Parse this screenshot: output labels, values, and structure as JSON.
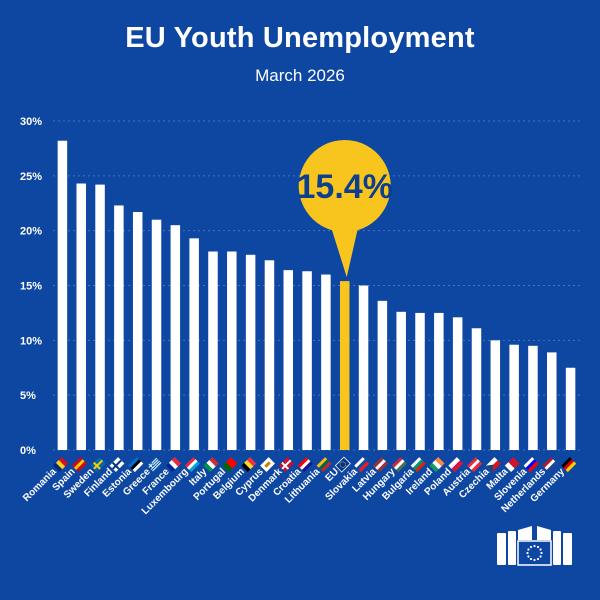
{
  "title": "EU Youth Unemployment",
  "subtitle": "March 2026",
  "highlight_label": "15.4%",
  "colors": {
    "background": "#0e47a1",
    "bar": "#ffffff",
    "highlight": "#f7c51d",
    "grid": "#4a72bf",
    "callout_text": "#0e3f8f"
  },
  "chart_data": {
    "type": "bar",
    "ylim": [
      0,
      30
    ],
    "yticks": [
      0,
      5,
      10,
      15,
      20,
      25,
      30
    ],
    "ytick_labels": [
      "0%",
      "5%",
      "10%",
      "15%",
      "20%",
      "25%",
      "30%"
    ],
    "grid": true,
    "highlight_category": "EU",
    "categories": [
      "Romania",
      "Spain",
      "Sweden",
      "Finland",
      "Estonia",
      "Greece",
      "France",
      "Luxembourg",
      "Italy",
      "Portugal",
      "Belgium",
      "Cyprus",
      "Denmark",
      "Croatia",
      "Lithuania",
      "EU",
      "Slovakia",
      "Latvia",
      "Hungary",
      "Bulgaria",
      "Ireland",
      "Poland",
      "Austria",
      "Czechia",
      "Malta",
      "Slovenia",
      "Netherlands",
      "Germany"
    ],
    "values": [
      28.2,
      24.3,
      24.2,
      22.3,
      21.7,
      21.0,
      20.5,
      19.3,
      18.1,
      18.1,
      17.8,
      17.3,
      16.4,
      16.3,
      16.0,
      15.4,
      15.0,
      13.6,
      12.6,
      12.5,
      12.5,
      12.1,
      11.1,
      10.0,
      9.6,
      9.5,
      8.9,
      7.5
    ]
  }
}
